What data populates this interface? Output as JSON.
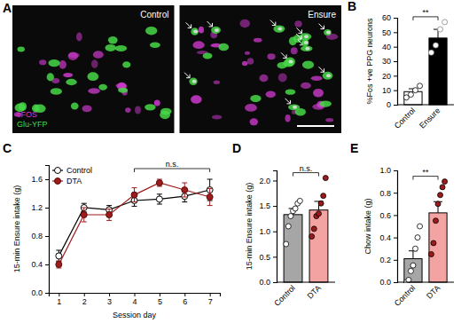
{
  "chart_data": [
    {
      "type": "image",
      "title": "A",
      "images": [
        "Control",
        "Ensure"
      ],
      "channels": [
        {
          "name": "cFOS",
          "color": "#d63cd6"
        },
        {
          "name": "Glu-YFP",
          "color": "#46d846"
        }
      ]
    },
    {
      "type": "bar",
      "title": "B",
      "ylabel": "%Fos +ve PPG neurons",
      "categories": [
        "Control",
        "Ensure"
      ],
      "values": [
        9,
        46
      ],
      "errors": [
        2,
        6
      ],
      "points": [
        [
          5,
          7,
          10,
          13
        ],
        [
          36,
          41,
          52,
          57
        ]
      ],
      "colors": [
        "#ffffff",
        "#000000"
      ],
      "ylim": [
        0,
        60
      ],
      "yticks": [
        0,
        10,
        20,
        30,
        40,
        50,
        60
      ],
      "annotation": "**"
    },
    {
      "type": "line",
      "title": "C",
      "xlabel": "Session day",
      "ylabel": "15-min Ensure intake (g)",
      "x": [
        1,
        2,
        3,
        4,
        5,
        6,
        7
      ],
      "xlim": [
        0.6,
        7.4
      ],
      "xticks": [
        1,
        2,
        3,
        4,
        5,
        6,
        7
      ],
      "ylim": [
        0,
        1.8
      ],
      "yticks": [
        {
          "value": 0,
          "label": "0.0"
        },
        0.4,
        0.8,
        1.2,
        1.6
      ],
      "legend": "top-left",
      "marker": "circle",
      "series": [
        {
          "name": "Control",
          "color": "#ffffff",
          "values": [
            0.52,
            1.2,
            1.17,
            1.3,
            1.32,
            1.36,
            1.45
          ],
          "errors": [
            0.08,
            0.06,
            0.06,
            0.08,
            0.07,
            0.08,
            0.15
          ]
        },
        {
          "name": "DTA",
          "color": "#9e1b1b",
          "values": [
            0.4,
            1.1,
            1.1,
            1.38,
            1.55,
            1.45,
            1.35
          ],
          "errors": [
            0.05,
            0.1,
            0.08,
            0.1,
            0.05,
            0.1,
            0.12
          ]
        }
      ],
      "annotation": {
        "text": "n.s.",
        "x": [
          4,
          7
        ]
      }
    },
    {
      "type": "bar",
      "title": "D",
      "ylabel": "15-min Ensure intake (g)",
      "categories": [
        "Control",
        "DTA"
      ],
      "values": [
        1.33,
        1.42
      ],
      "errors": [
        0.12,
        0.17
      ],
      "points": [
        [
          0.75,
          1.1,
          1.3,
          1.4,
          1.45,
          1.55,
          1.6
        ],
        [
          0.9,
          1.05,
          1.3,
          1.35,
          1.55,
          1.7,
          2.05
        ]
      ],
      "colors": [
        "#a6a6a6",
        "#f4a3a3"
      ],
      "ylim": [
        0,
        2.2
      ],
      "yticks": [
        {
          "value": 0,
          "label": "0.0"
        },
        0.5,
        {
          "value": 1,
          "label": "1.0"
        },
        1.5,
        {
          "value": 2,
          "label": "2.0"
        }
      ],
      "annotation": "n.s."
    },
    {
      "type": "bar",
      "title": "E",
      "ylabel": "Chow intake (g)",
      "categories": [
        "Control",
        "DTA"
      ],
      "values": [
        0.21,
        0.62
      ],
      "errors": [
        0.07,
        0.1
      ],
      "points": [
        [
          0,
          0.02,
          0.1,
          0.15,
          0.3,
          0.4,
          0.5
        ],
        [
          0.25,
          0.35,
          0.55,
          0.7,
          0.78,
          0.85,
          0.9
        ]
      ],
      "colors": [
        "#a6a6a6",
        "#f4a3a3"
      ],
      "ylim": [
        0,
        1.0
      ],
      "yticks": [
        {
          "value": 0,
          "label": "0.0"
        },
        0.2,
        0.4,
        0.6,
        0.8,
        {
          "value": 1,
          "label": "1.0"
        }
      ],
      "annotation": "**"
    }
  ]
}
